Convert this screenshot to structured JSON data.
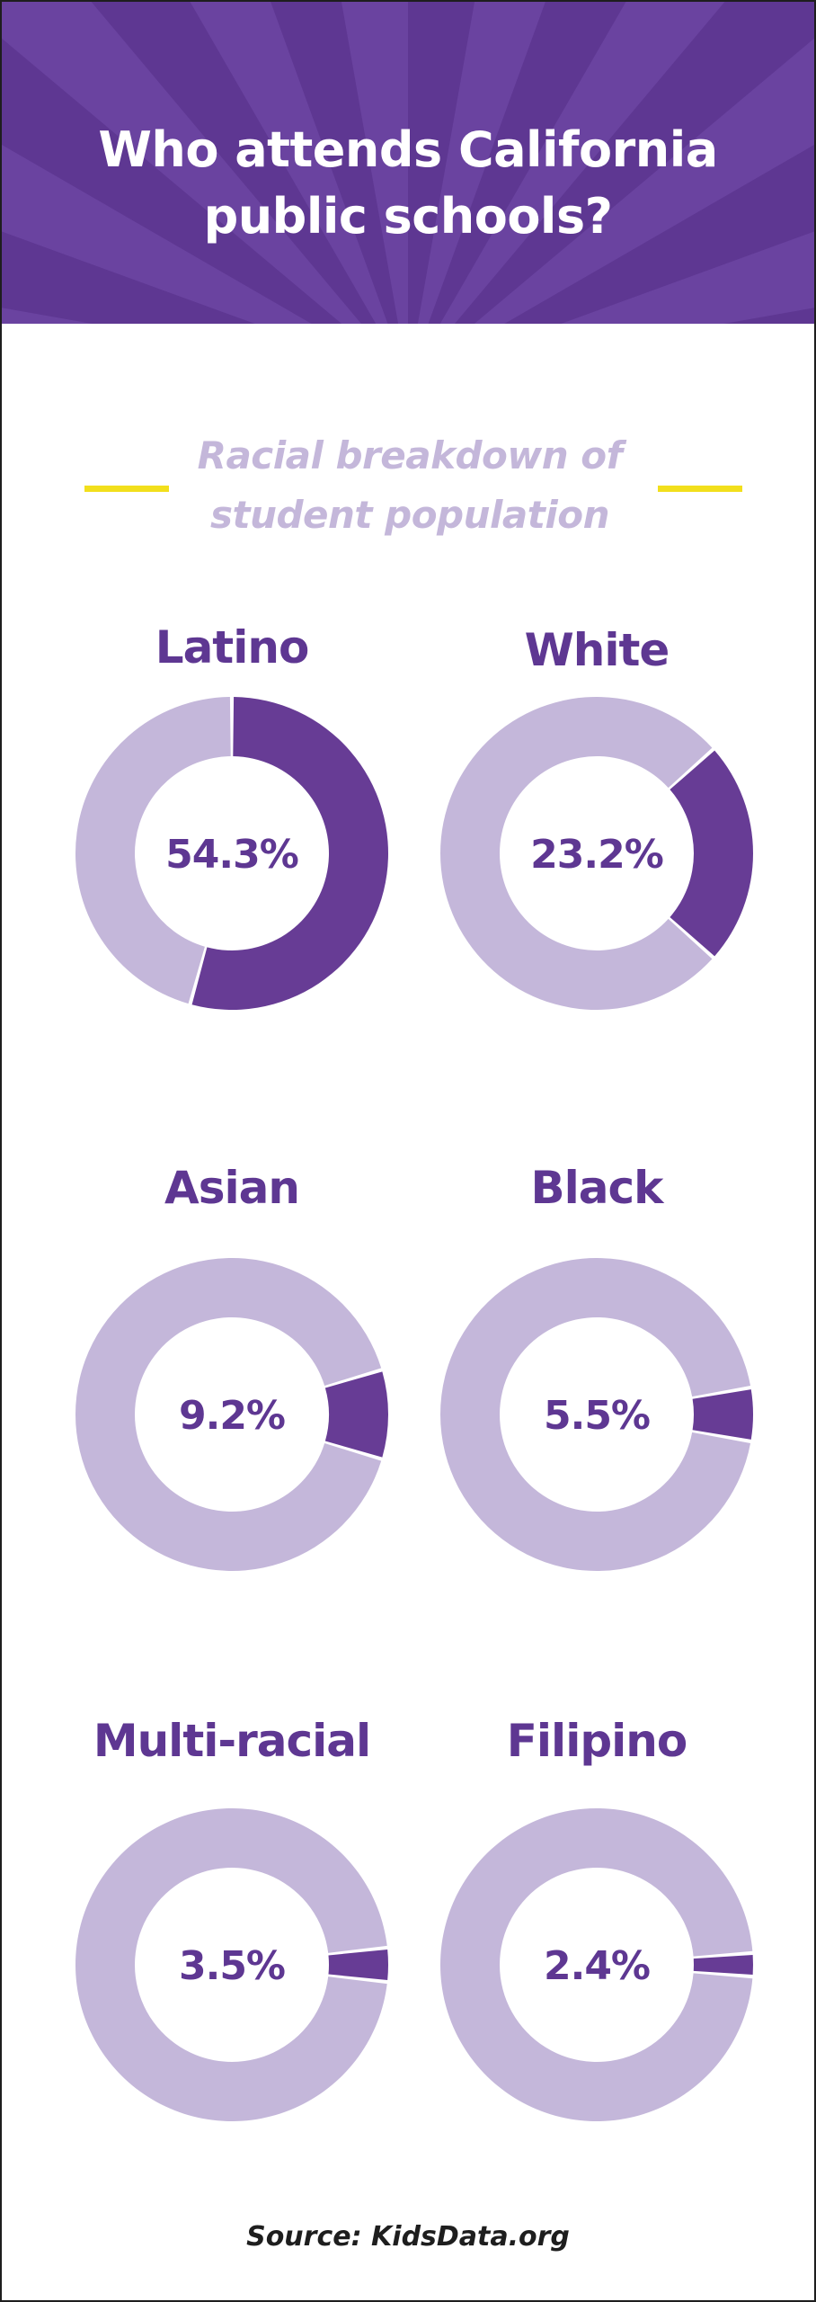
{
  "header": {
    "title_line1": "Who attends California",
    "title_line2": "public schools?"
  },
  "subtitle": {
    "line1": "Racial breakdown of",
    "line2": "student population"
  },
  "source": "Source: KidsData.org",
  "colors": {
    "header_bg": "#5e3792",
    "ray": "#6a43a0",
    "highlight": "#673c95",
    "remainder": "#c4b7da",
    "label": "#5e3792",
    "accent_rule": "#f2df1c"
  },
  "chart_data": [
    {
      "type": "pie",
      "title": "Latino",
      "value": 54.3,
      "label": "54.3%"
    },
    {
      "type": "pie",
      "title": "White",
      "value": 23.2,
      "label": "23.2%"
    },
    {
      "type": "pie",
      "title": "Asian",
      "value": 9.2,
      "label": "9.2%"
    },
    {
      "type": "pie",
      "title": "Black",
      "value": 5.5,
      "label": "5.5%"
    },
    {
      "type": "pie",
      "title": "Multi-racial",
      "value": 3.5,
      "label": "3.5%"
    },
    {
      "type": "pie",
      "title": "Filipino",
      "value": 2.4,
      "label": "2.4%"
    }
  ]
}
